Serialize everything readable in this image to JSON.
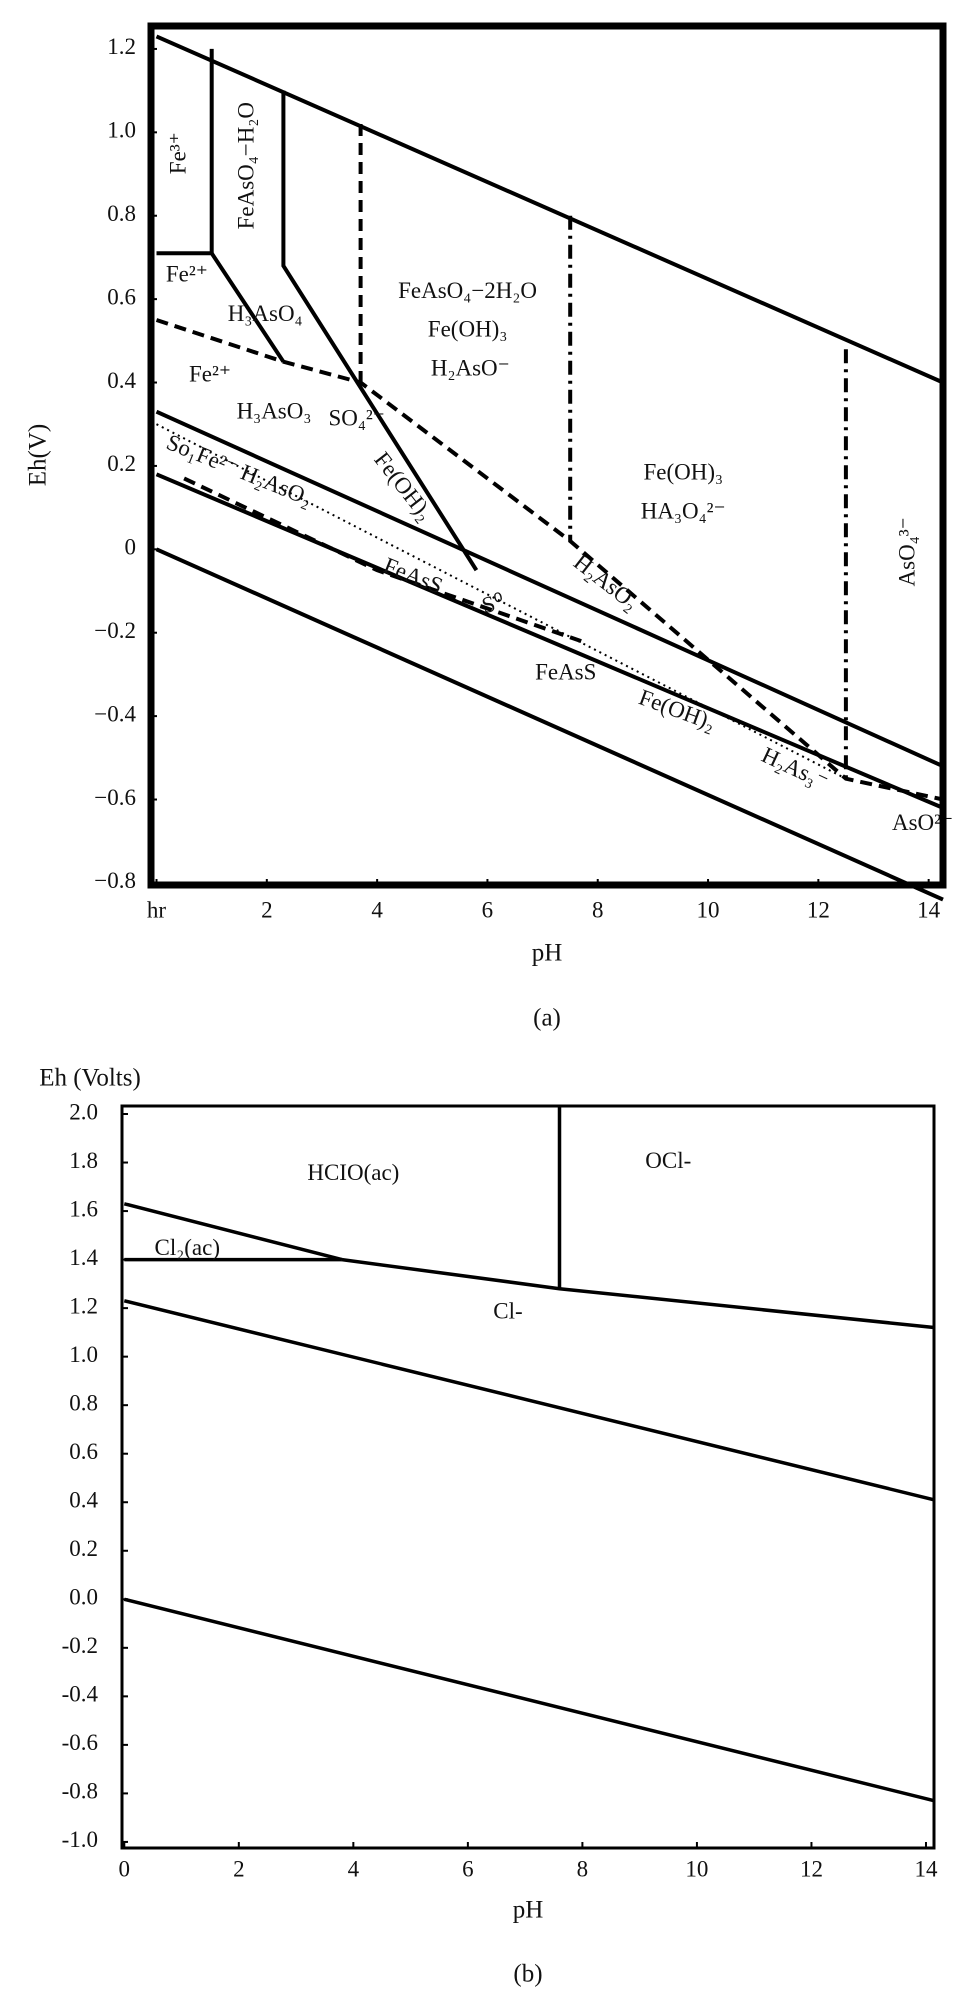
{
  "chart_data": [
    {
      "type": "line",
      "caption": "(a)",
      "xlabel": "pH",
      "ylabel": "Eh(V)",
      "xlim": [
        -0.1,
        14.26
      ],
      "ylim": [
        -0.805,
        1.255
      ],
      "xticks": [
        {
          "value": 0,
          "label": "hr"
        },
        2,
        4,
        6,
        8,
        10,
        12,
        14
      ],
      "yticks": [
        1.2,
        {
          "value": 1.0,
          "label": "1.0"
        },
        0.8,
        0.6,
        0.4,
        0.2,
        0,
        {
          "value": -0.2,
          "label": "−0.2"
        },
        {
          "value": -0.4,
          "label": "−0.4"
        },
        {
          "value": -0.6,
          "label": "−0.6"
        },
        {
          "value": -0.8,
          "label": "−0.8"
        }
      ],
      "series": [
        {
          "style": "solid",
          "color": "#000000",
          "x": [
            0,
            14.26
          ],
          "values": [
            1.23,
            0.4
          ]
        },
        {
          "style": "solid",
          "color": "#000000",
          "x": [
            0,
            14.26
          ],
          "values": [
            0,
            -0.84
          ]
        },
        {
          "style": "solid",
          "color": "#000000",
          "x": [
            1,
            1
          ],
          "values": [
            1.2,
            0.71
          ]
        },
        {
          "style": "solid",
          "color": "#000000",
          "x": [
            0,
            1,
            2.3
          ],
          "values": [
            0.71,
            0.71,
            0.45
          ]
        },
        {
          "style": "solid",
          "color": "#000000",
          "x": [
            2.3,
            2.3,
            5.8
          ],
          "values": [
            1.1,
            0.68,
            -0.05
          ]
        },
        {
          "style": "dashed",
          "color": "#000000",
          "x": [
            3.7,
            3.7
          ],
          "values": [
            1.02,
            0.4
          ]
        },
        {
          "style": "dashdot",
          "color": "#000000",
          "x": [
            7.5,
            7.5
          ],
          "values": [
            0.8,
            0.02
          ]
        },
        {
          "style": "dashdot",
          "color": "#000000",
          "x": [
            12.5,
            12.5
          ],
          "values": [
            0.48,
            -0.55
          ]
        },
        {
          "style": "dashed",
          "color": "#000000",
          "x": [
            0,
            2.3,
            3.7,
            7.5,
            12.5,
            14.26
          ],
          "values": [
            0.55,
            0.45,
            0.4,
            0.02,
            -0.55,
            -0.6
          ]
        },
        {
          "style": "solid",
          "color": "#000000",
          "x": [
            0,
            14.26
          ],
          "values": [
            0.33,
            -0.52
          ]
        },
        {
          "style": "solid",
          "color": "#000000",
          "x": [
            0,
            14.26
          ],
          "values": [
            0.18,
            -0.62
          ]
        },
        {
          "style": "dotted",
          "color": "#000000",
          "x": [
            0,
            12.5
          ],
          "values": [
            0.3,
            -0.55
          ]
        },
        {
          "style": "dashed",
          "color": "#000000",
          "x": [
            0.5,
            4,
            7.7
          ],
          "values": [
            0.17,
            -0.05,
            -0.22
          ]
        }
      ],
      "annotations": [
        {
          "text": "Fe³⁺",
          "x": 0.43,
          "y": 0.95
        },
        {
          "text": "FeAsO₄−H₂O",
          "x": 1.66,
          "y": 0.92
        },
        {
          "text": "Fe²⁺",
          "x": 0.55,
          "y": 0.655
        },
        {
          "text": "H₃AsO₄",
          "x": 1.97,
          "y": 0.56
        },
        {
          "text": "Fe²⁺",
          "x": 0.97,
          "y": 0.415
        },
        {
          "text": "H₃AsO₃",
          "x": 2.13,
          "y": 0.326
        },
        {
          "text": "SO₄²⁻",
          "x": 3.63,
          "y": 0.31
        },
        {
          "text": "FeAsO₄−2H₂O",
          "x": 5.64,
          "y": 0.615
        },
        {
          "text": "Fe(OH)₃",
          "x": 5.64,
          "y": 0.523
        },
        {
          "text": "H₂AsO⁻",
          "x": 5.69,
          "y": 0.43
        },
        {
          "text": "Fe(OH)₃",
          "x": 9.55,
          "y": 0.18
        },
        {
          "text": "HA₃O₄²⁻",
          "x": 9.55,
          "y": 0.086
        },
        {
          "text": "AsO₄³⁻",
          "x": 13.65,
          "y": -0.006
        },
        {
          "text": "Fe(OH)₂",
          "x": 4.45,
          "y": 0.148
        },
        {
          "text": "H₂AsO₂",
          "x": 8.13,
          "y": -0.083
        },
        {
          "text": "So₁Fe²⁻ H₂AsO₂",
          "x": 1.49,
          "y": 0.185
        },
        {
          "text": "FeAsS",
          "x": 4.64,
          "y": -0.068
        },
        {
          "text": "S⁰",
          "x": 6.11,
          "y": -0.135
        },
        {
          "text": "FeAsS",
          "x": 7.42,
          "y": -0.3
        },
        {
          "text": "Fe(OH)₂",
          "x": 9.43,
          "y": -0.39
        },
        {
          "text": "H₂As₃⁻",
          "x": 11.56,
          "y": -0.53
        },
        {
          "text": "AsO²⁻",
          "x": 13.89,
          "y": -0.66
        }
      ]
    },
    {
      "type": "line",
      "caption": "(b)",
      "xlabel": "pH",
      "ylabel": "Eh (Volts)",
      "xlim": [
        -0.04,
        14.14
      ],
      "ylim": [
        -1.025,
        2.033
      ],
      "xticks": [
        0,
        2,
        4,
        6,
        8,
        10,
        12,
        14
      ],
      "yticks": [
        {
          "value": 2.0,
          "label": "2.0"
        },
        1.8,
        1.6,
        1.4,
        1.2,
        {
          "value": 1.0,
          "label": "1.0"
        },
        0.8,
        0.6,
        0.4,
        0.2,
        {
          "value": 0.0,
          "label": "0.0"
        },
        -0.2,
        -0.4,
        -0.6,
        -0.8,
        {
          "value": -1.0,
          "label": "-1.0"
        }
      ],
      "series": [
        {
          "style": "solid",
          "color": "#000000",
          "x": [
            0,
            3.8
          ],
          "values": [
            1.63,
            1.4
          ]
        },
        {
          "style": "solid",
          "color": "#000000",
          "x": [
            0,
            3.8
          ],
          "values": [
            1.4,
            1.4
          ]
        },
        {
          "style": "solid",
          "color": "#000000",
          "x": [
            3.8,
            7.6,
            14.14
          ],
          "values": [
            1.4,
            1.28,
            1.12
          ]
        },
        {
          "style": "solid",
          "color": "#000000",
          "x": [
            7.6,
            7.6
          ],
          "values": [
            2.033,
            1.28
          ]
        },
        {
          "style": "solid",
          "color": "#000000",
          "x": [
            0,
            14.14
          ],
          "values": [
            1.23,
            0.41
          ]
        },
        {
          "style": "solid",
          "color": "#000000",
          "x": [
            0,
            14.14
          ],
          "values": [
            0,
            -0.83
          ]
        }
      ],
      "annotations": [
        {
          "text": "HCIO(ac)",
          "x": 4.0,
          "y": 1.75
        },
        {
          "text": "OCl-",
          "x": 9.5,
          "y": 1.8
        },
        {
          "text": "Cl₂(ac)",
          "x": 1.1,
          "y": 1.44
        },
        {
          "text": "Cl-",
          "x": 6.7,
          "y": 1.18
        }
      ]
    }
  ]
}
